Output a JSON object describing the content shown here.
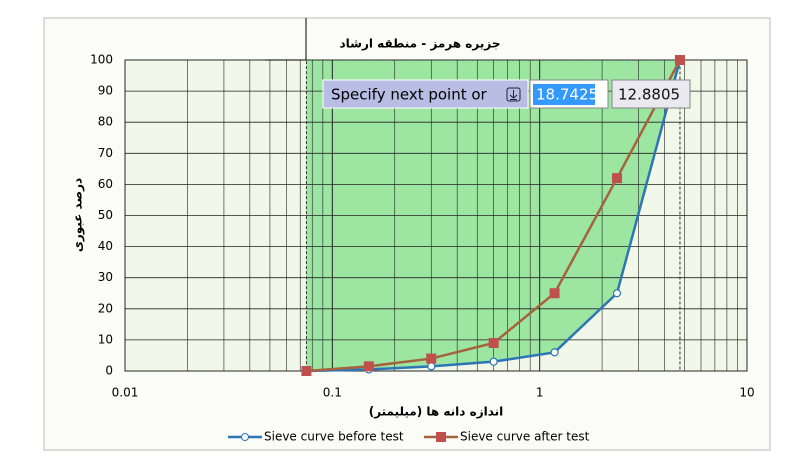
{
  "chart_data": {
    "type": "line",
    "title": "جزیره هرمز - منطقه ارشاد",
    "xlabel": "اندازه دانه ها (میلیمتر)",
    "ylabel": "درصد عبوری",
    "x": [
      0.075,
      0.15,
      0.3,
      0.6,
      1.18,
      2.36,
      4.75
    ],
    "series": [
      {
        "name": "Sieve curve before test",
        "color": "#2e75b6",
        "marker": "circle",
        "values": [
          0,
          0.5,
          1.5,
          3,
          6,
          25,
          100
        ]
      },
      {
        "name": "Sieve curve after test",
        "color": "#a5633c",
        "marker_color": "#c0504d",
        "marker": "square",
        "values": [
          0,
          1.5,
          4,
          9,
          25,
          62,
          100
        ]
      }
    ],
    "xlim": [
      0.01,
      10
    ],
    "xticks": [
      0.01,
      0.1,
      1,
      10
    ],
    "xscale": "log",
    "x_minor_grid": true,
    "ylim": [
      0,
      100
    ],
    "yticks": [
      0,
      10,
      20,
      30,
      40,
      50,
      60,
      70,
      80,
      90,
      100
    ],
    "grid": true,
    "legend": "bottom"
  },
  "prompt": {
    "text": "Specify next point or",
    "inputs": [
      "18.7425",
      "12.8805"
    ]
  }
}
